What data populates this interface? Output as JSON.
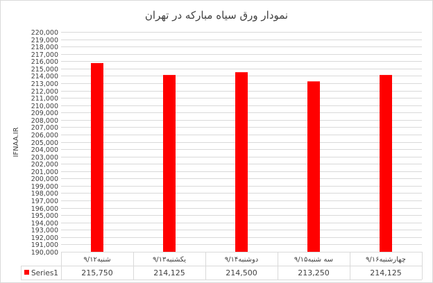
{
  "chart_data": {
    "type": "bar",
    "title": "نمودار ورق سیاه مبارکه در تهران",
    "ylabel": "IFNAA.IR",
    "xlabel": "",
    "categories": [
      "شنبه۹/۱۲",
      "یکشنبه۹/۱۳",
      "دوشنبه۹/۱۴",
      "سه شنبه۹/۱۵",
      "چهارشنبه۹/۱۶"
    ],
    "series": [
      {
        "name": "Series1",
        "values": [
          215750,
          214125,
          214500,
          213250,
          214125
        ],
        "color": "#ff0000"
      }
    ],
    "value_labels": [
      "215,750",
      "214,125",
      "214,500",
      "213,250",
      "214,125"
    ],
    "ylim": [
      190000,
      220000
    ],
    "ytick_step": 1000,
    "grid": true,
    "legend": "data-table",
    "data_table": true
  }
}
